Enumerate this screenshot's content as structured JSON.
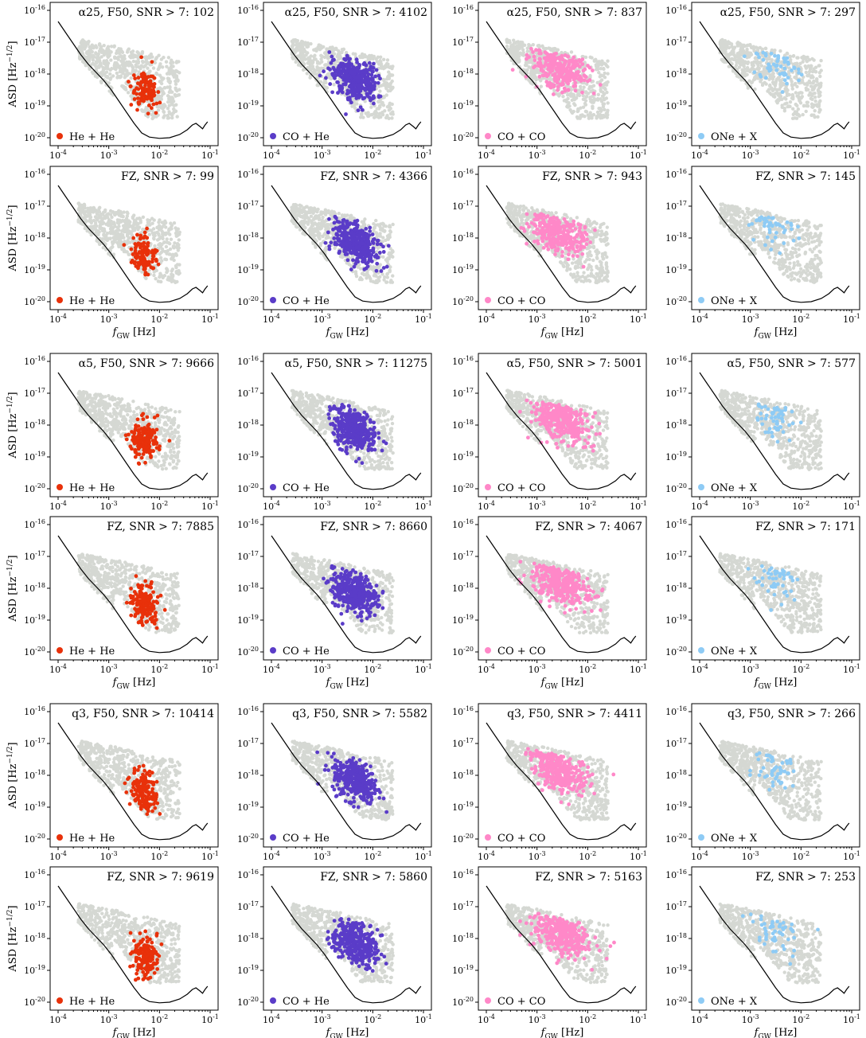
{
  "figure": {
    "y_axis_label": "ASD [Hz^{-1/2}]",
    "x_axis_label": "f_GW [Hz]",
    "x_ticks": [
      "10^-4",
      "10^-3",
      "10^-2",
      "10^-1"
    ],
    "y_ticks": [
      "10^-16",
      "10^-17",
      "10^-18",
      "10^-19",
      "10^-20"
    ],
    "colors": {
      "He + He": "#e8310a",
      "CO + He": "#5a3cc8",
      "CO + CO": "#ff88c8",
      "ONe + X": "#8ecbf5",
      "background": "#d5d8d3",
      "sensitivity_curve": "#000000"
    }
  },
  "chart_data": [
    {
      "type": "scatter",
      "title": "α25, F50, SNR > 7: 102",
      "series": [
        {
          "name": "He + He",
          "count": 102
        }
      ],
      "xscale": "log",
      "yscale": "log",
      "xlim": [
        0.0001,
        0.1
      ],
      "ylim": [
        1e-20,
        1e-16
      ]
    },
    {
      "type": "scatter",
      "title": "α25, F50, SNR > 7: 4102",
      "series": [
        {
          "name": "CO + He",
          "count": 4102
        }
      ],
      "xscale": "log",
      "yscale": "log",
      "xlim": [
        0.0001,
        0.1
      ],
      "ylim": [
        1e-20,
        1e-16
      ]
    },
    {
      "type": "scatter",
      "title": "α25, F50, SNR > 7: 837",
      "series": [
        {
          "name": "CO + CO",
          "count": 837
        }
      ],
      "xscale": "log",
      "yscale": "log",
      "xlim": [
        0.0001,
        0.1
      ],
      "ylim": [
        1e-20,
        1e-16
      ]
    },
    {
      "type": "scatter",
      "title": "α25, F50, SNR > 7: 297",
      "series": [
        {
          "name": "ONe + X",
          "count": 297
        }
      ],
      "xscale": "log",
      "yscale": "log",
      "xlim": [
        0.0001,
        0.1
      ],
      "ylim": [
        1e-20,
        1e-16
      ]
    },
    {
      "type": "scatter",
      "title": "FZ, SNR > 7: 99",
      "series": [
        {
          "name": "He + He",
          "count": 99
        }
      ],
      "xscale": "log",
      "yscale": "log",
      "xlim": [
        0.0001,
        0.1
      ],
      "ylim": [
        1e-20,
        1e-16
      ]
    },
    {
      "type": "scatter",
      "title": "FZ, SNR > 7: 4366",
      "series": [
        {
          "name": "CO + He",
          "count": 4366
        }
      ],
      "xscale": "log",
      "yscale": "log",
      "xlim": [
        0.0001,
        0.1
      ],
      "ylim": [
        1e-20,
        1e-16
      ]
    },
    {
      "type": "scatter",
      "title": "FZ, SNR > 7: 943",
      "series": [
        {
          "name": "CO + CO",
          "count": 943
        }
      ],
      "xscale": "log",
      "yscale": "log",
      "xlim": [
        0.0001,
        0.1
      ],
      "ylim": [
        1e-20,
        1e-16
      ]
    },
    {
      "type": "scatter",
      "title": "FZ, SNR > 7: 145",
      "series": [
        {
          "name": "ONe + X",
          "count": 145
        }
      ],
      "xscale": "log",
      "yscale": "log",
      "xlim": [
        0.0001,
        0.1
      ],
      "ylim": [
        1e-20,
        1e-16
      ]
    },
    {
      "type": "scatter",
      "title": "α5, F50, SNR > 7: 9666",
      "series": [
        {
          "name": "He + He",
          "count": 9666
        }
      ],
      "xscale": "log",
      "yscale": "log",
      "xlim": [
        0.0001,
        0.1
      ],
      "ylim": [
        1e-20,
        1e-16
      ]
    },
    {
      "type": "scatter",
      "title": "α5, F50, SNR > 7: 11275",
      "series": [
        {
          "name": "CO + He",
          "count": 11275
        }
      ],
      "xscale": "log",
      "yscale": "log",
      "xlim": [
        0.0001,
        0.1
      ],
      "ylim": [
        1e-20,
        1e-16
      ]
    },
    {
      "type": "scatter",
      "title": "α5, F50, SNR > 7: 5001",
      "series": [
        {
          "name": "CO + CO",
          "count": 5001
        }
      ],
      "xscale": "log",
      "yscale": "log",
      "xlim": [
        0.0001,
        0.1
      ],
      "ylim": [
        1e-20,
        1e-16
      ]
    },
    {
      "type": "scatter",
      "title": "α5, F50, SNR > 7: 577",
      "series": [
        {
          "name": "ONe + X",
          "count": 577
        }
      ],
      "xscale": "log",
      "yscale": "log",
      "xlim": [
        0.0001,
        0.1
      ],
      "ylim": [
        1e-20,
        1e-16
      ]
    },
    {
      "type": "scatter",
      "title": "FZ, SNR > 7: 7885",
      "series": [
        {
          "name": "He + He",
          "count": 7885
        }
      ],
      "xscale": "log",
      "yscale": "log",
      "xlim": [
        0.0001,
        0.1
      ],
      "ylim": [
        1e-20,
        1e-16
      ]
    },
    {
      "type": "scatter",
      "title": "FZ, SNR > 7: 8660",
      "series": [
        {
          "name": "CO + He",
          "count": 8660
        }
      ],
      "xscale": "log",
      "yscale": "log",
      "xlim": [
        0.0001,
        0.1
      ],
      "ylim": [
        1e-20,
        1e-16
      ]
    },
    {
      "type": "scatter",
      "title": "FZ, SNR > 7: 4067",
      "series": [
        {
          "name": "CO + CO",
          "count": 4067
        }
      ],
      "xscale": "log",
      "yscale": "log",
      "xlim": [
        0.0001,
        0.1
      ],
      "ylim": [
        1e-20,
        1e-16
      ]
    },
    {
      "type": "scatter",
      "title": "FZ, SNR > 7: 171",
      "series": [
        {
          "name": "ONe + X",
          "count": 171
        }
      ],
      "xscale": "log",
      "yscale": "log",
      "xlim": [
        0.0001,
        0.1
      ],
      "ylim": [
        1e-20,
        1e-16
      ]
    },
    {
      "type": "scatter",
      "title": "q3, F50, SNR > 7: 10414",
      "series": [
        {
          "name": "He + He",
          "count": 10414
        }
      ],
      "xscale": "log",
      "yscale": "log",
      "xlim": [
        0.0001,
        0.1
      ],
      "ylim": [
        1e-20,
        1e-16
      ]
    },
    {
      "type": "scatter",
      "title": "q3, F50, SNR > 7: 5582",
      "series": [
        {
          "name": "CO + He",
          "count": 5582
        }
      ],
      "xscale": "log",
      "yscale": "log",
      "xlim": [
        0.0001,
        0.1
      ],
      "ylim": [
        1e-20,
        1e-16
      ]
    },
    {
      "type": "scatter",
      "title": "q3, F50, SNR > 7: 4411",
      "series": [
        {
          "name": "CO + CO",
          "count": 4411
        }
      ],
      "xscale": "log",
      "yscale": "log",
      "xlim": [
        0.0001,
        0.1
      ],
      "ylim": [
        1e-20,
        1e-16
      ]
    },
    {
      "type": "scatter",
      "title": "q3, F50, SNR > 7: 266",
      "series": [
        {
          "name": "ONe + X",
          "count": 266
        }
      ],
      "xscale": "log",
      "yscale": "log",
      "xlim": [
        0.0001,
        0.1
      ],
      "ylim": [
        1e-20,
        1e-16
      ]
    },
    {
      "type": "scatter",
      "title": "FZ, SNR > 7: 9619",
      "series": [
        {
          "name": "He + He",
          "count": 9619
        }
      ],
      "xscale": "log",
      "yscale": "log",
      "xlim": [
        0.0001,
        0.1
      ],
      "ylim": [
        1e-20,
        1e-16
      ]
    },
    {
      "type": "scatter",
      "title": "FZ, SNR > 7: 5860",
      "series": [
        {
          "name": "CO + He",
          "count": 5860
        }
      ],
      "xscale": "log",
      "yscale": "log",
      "xlim": [
        0.0001,
        0.1
      ],
      "ylim": [
        1e-20,
        1e-16
      ]
    },
    {
      "type": "scatter",
      "title": "FZ, SNR > 7: 5163",
      "series": [
        {
          "name": "CO + CO",
          "count": 5163
        }
      ],
      "xscale": "log",
      "yscale": "log",
      "xlim": [
        0.0001,
        0.1
      ],
      "ylim": [
        1e-20,
        1e-16
      ]
    },
    {
      "type": "scatter",
      "title": "FZ, SNR > 7: 253",
      "series": [
        {
          "name": "ONe + X",
          "count": 253
        }
      ],
      "xscale": "log",
      "yscale": "log",
      "xlim": [
        0.0001,
        0.1
      ],
      "ylim": [
        1e-20,
        1e-16
      ]
    }
  ]
}
